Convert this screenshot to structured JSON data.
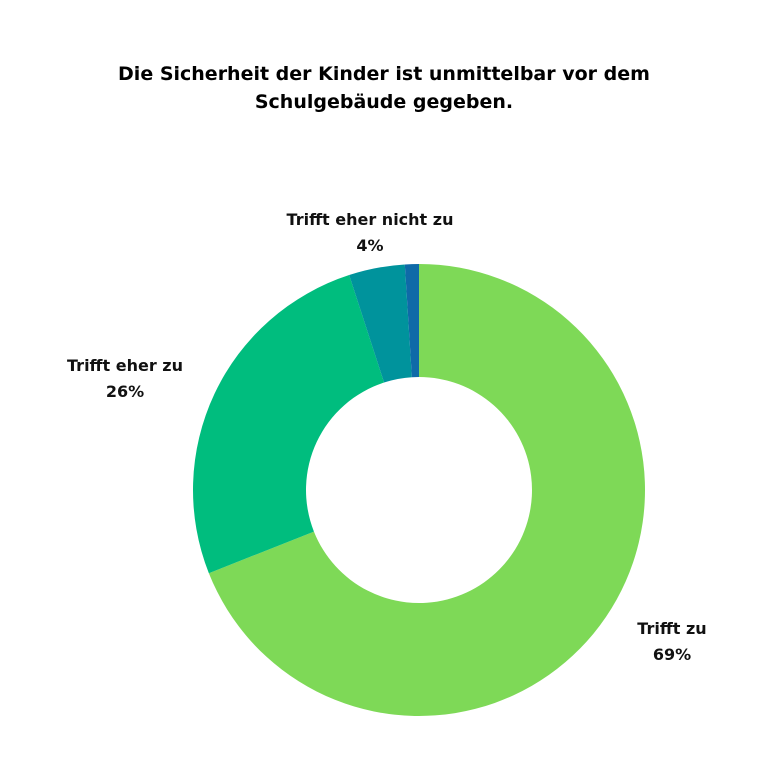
{
  "chart_data": {
    "type": "pie",
    "variant": "donut",
    "title": "Die Sicherheit der Kinder ist unmittelbar vor dem Schulgebäude gegeben.",
    "slices": [
      {
        "label": "Trifft zu",
        "value": 69,
        "display": "69%",
        "color": "#7ED957"
      },
      {
        "label": "Trifft eher zu",
        "value": 26,
        "display": "26%",
        "color": "#00BD7E"
      },
      {
        "label": "Trifft eher nicht zu",
        "value": 4,
        "display": "4%",
        "color": "#00939C"
      },
      {
        "label": "",
        "value": 1,
        "display": "",
        "color": "#0F6AA8"
      }
    ],
    "legend": "none"
  }
}
